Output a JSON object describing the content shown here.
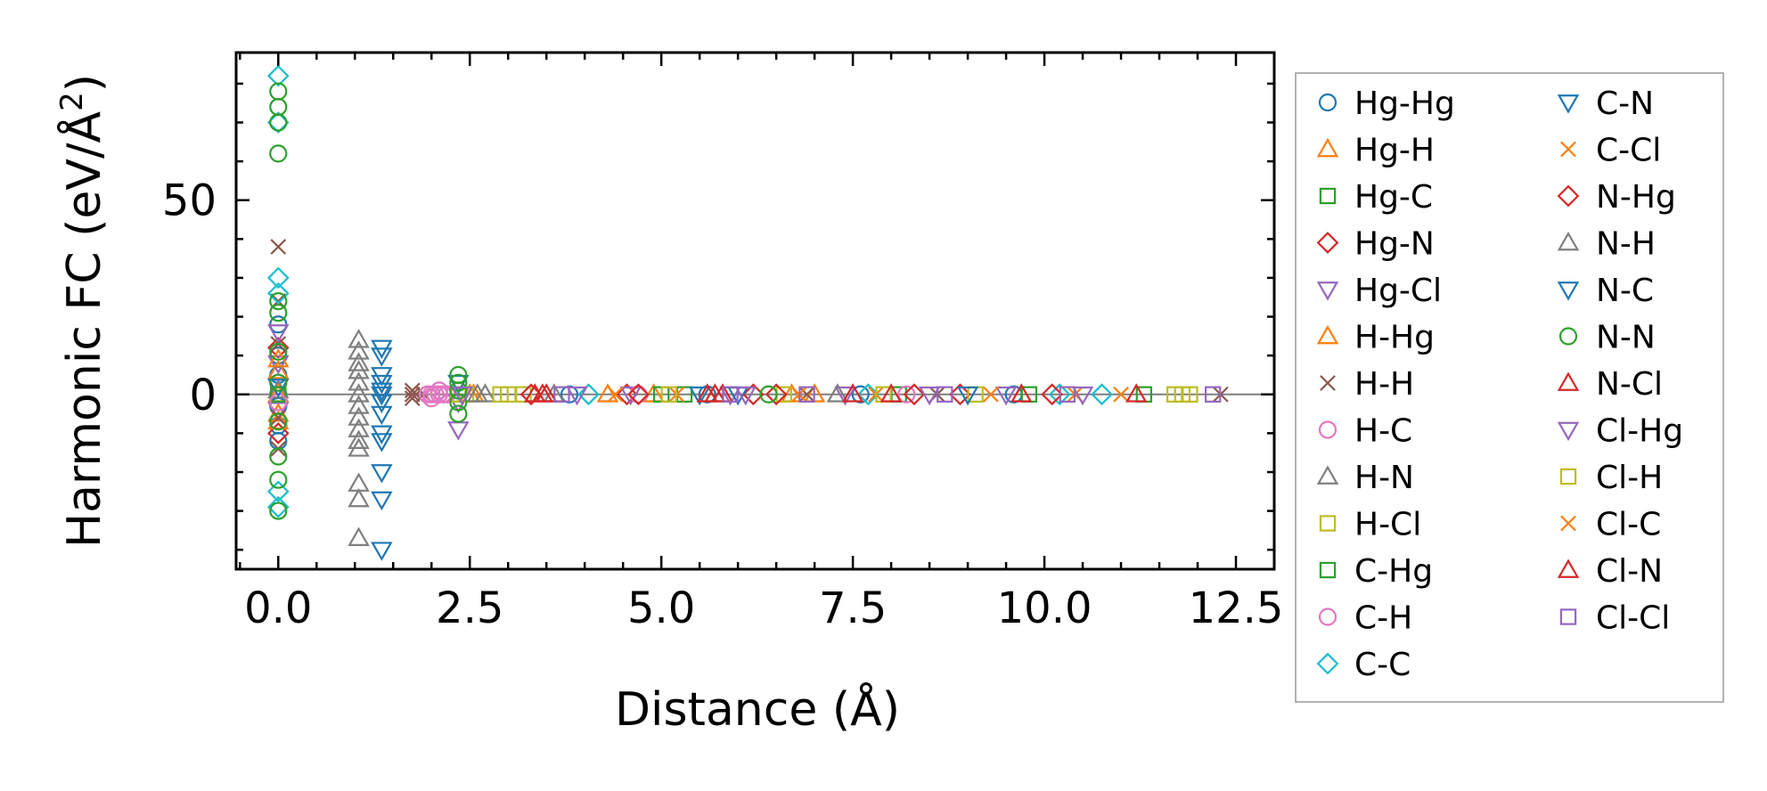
{
  "chart_data": {
    "type": "scatter",
    "title": "",
    "xlabel": "Distance (Å)",
    "ylabel": "Harmonic FC (eV/Å²)",
    "ylabel_base": "Harmonic FC (eV/Å",
    "ylabel_sup": "2",
    "ylabel_tail": ")",
    "xlim": [
      -0.55,
      13.0
    ],
    "ylim": [
      -45,
      88
    ],
    "x_ticks": [
      0.0,
      2.5,
      5.0,
      7.5,
      10.0,
      12.5
    ],
    "x_tick_labels": [
      "0.0",
      "2.5",
      "5.0",
      "7.5",
      "10.0",
      "12.5"
    ],
    "y_ticks": [
      0,
      50
    ],
    "y_tick_labels": [
      "0",
      "50"
    ],
    "zero_line": 0,
    "grid": false,
    "legend_position": "outside-right",
    "series": [
      {
        "name": "Hg-Hg",
        "marker": "circle",
        "color": "#1f77b4",
        "x": [
          0,
          0,
          0,
          0,
          0,
          0,
          0,
          3.8,
          5.6,
          7.6,
          9.6
        ],
        "y": [
          18,
          10,
          5,
          0,
          -3,
          -8,
          -12,
          0,
          0,
          0,
          0
        ]
      },
      {
        "name": "Hg-H",
        "marker": "triangle-up",
        "color": "#ff7f0e",
        "x": [
          0,
          0,
          0,
          2.55,
          4.9,
          6.7
        ],
        "y": [
          6,
          0,
          -5,
          0,
          0,
          0
        ]
      },
      {
        "name": "Hg-C",
        "marker": "square",
        "color": "#2ca02c",
        "x": [
          0,
          2.35,
          5.0,
          8.1
        ],
        "y": [
          0,
          0,
          0,
          0
        ]
      },
      {
        "name": "Hg-N",
        "marker": "diamond",
        "color": "#d62728",
        "x": [
          0,
          0,
          4.55,
          6.2,
          8.9
        ],
        "y": [
          12,
          -10,
          0,
          0,
          0
        ]
      },
      {
        "name": "Hg-Cl",
        "marker": "triangle-down",
        "color": "#9467bd",
        "x": [
          0,
          0,
          0,
          0,
          2.35,
          2.35,
          4.6,
          5.9,
          7.4,
          9.5
        ],
        "y": [
          16,
          8,
          2,
          -4,
          -2,
          -9,
          0,
          0,
          0,
          0
        ]
      },
      {
        "name": "H-Hg",
        "marker": "triangle-up",
        "color": "#ff7f0e",
        "x": [
          0,
          0,
          2.5,
          4.3,
          7.0
        ],
        "y": [
          9,
          -7,
          0,
          0,
          0
        ]
      },
      {
        "name": "H-H",
        "marker": "x",
        "color": "#8c564b",
        "x": [
          0,
          0,
          0,
          0,
          0,
          1.75,
          1.75,
          1.75,
          1.8,
          1.9,
          6.9,
          8.6,
          12.3
        ],
        "y": [
          38,
          24,
          13,
          -6,
          -14,
          1,
          -1,
          0,
          0,
          0,
          0,
          0,
          0
        ]
      },
      {
        "name": "H-C",
        "marker": "circle",
        "color": "#e377c2",
        "x": [
          1.95,
          2.0,
          2.05,
          2.1,
          2.15,
          2.2,
          2.0,
          2.1
        ],
        "y": [
          0,
          0,
          0,
          0,
          0,
          0,
          -1,
          1
        ]
      },
      {
        "name": "H-N",
        "marker": "triangle-up",
        "color": "#7f7f7f",
        "x": [
          0,
          1.05,
          1.05,
          1.05,
          1.05,
          1.05,
          1.05,
          1.05,
          1.05,
          1.05,
          1.05,
          1.05,
          1.05,
          1.05,
          1.05,
          2.7
        ],
        "y": [
          1,
          14,
          11,
          8,
          6,
          3,
          0,
          -3,
          -6,
          -9,
          -12,
          -14,
          -23,
          -27,
          -37,
          0
        ]
      },
      {
        "name": "H-Cl",
        "marker": "square",
        "color": "#bcbd22",
        "x": [
          2.35,
          2.45,
          2.9,
          3.2,
          6.6,
          9.1,
          11.7,
          11.9
        ],
        "y": [
          0,
          0,
          0,
          0,
          0,
          0,
          0,
          0
        ]
      },
      {
        "name": "C-Hg",
        "marker": "square",
        "color": "#2ca02c",
        "x": [
          0,
          5.3,
          9.8,
          11.3
        ],
        "y": [
          0,
          0,
          0,
          0
        ]
      },
      {
        "name": "C-H",
        "marker": "circle",
        "color": "#e377c2",
        "x": [
          0,
          0,
          4.7,
          8.2
        ],
        "y": [
          3,
          -2,
          0,
          0
        ]
      },
      {
        "name": "C-C",
        "marker": "diamond",
        "color": "#17becf",
        "x": [
          0,
          0,
          0,
          0,
          0,
          0,
          4.05,
          7.7,
          10.2,
          10.75
        ],
        "y": [
          82,
          70,
          30,
          26,
          -25,
          -29,
          0,
          0,
          0,
          0
        ]
      },
      {
        "name": "C-N",
        "marker": "triangle-down",
        "color": "#1f77b4",
        "x": [
          1.35,
          1.35,
          1.35,
          1.35,
          1.35,
          1.35,
          1.35,
          1.35,
          1.35,
          1.35,
          1.35,
          1.35,
          1.35,
          6.0
        ],
        "y": [
          12,
          10,
          5,
          3,
          -2,
          -5,
          -10,
          -12,
          -20,
          -27,
          -40,
          0,
          1,
          0
        ]
      },
      {
        "name": "C-Cl",
        "marker": "x",
        "color": "#ff7f0e",
        "x": [
          5.2,
          7.8,
          10.4
        ],
        "y": [
          0,
          0,
          0
        ]
      },
      {
        "name": "N-Hg",
        "marker": "diamond",
        "color": "#d62728",
        "x": [
          3.3,
          4.7,
          6.5,
          8.3,
          10.1
        ],
        "y": [
          0,
          0,
          0,
          0,
          0
        ]
      },
      {
        "name": "N-H",
        "marker": "triangle-up",
        "color": "#7f7f7f",
        "x": [
          2.6,
          3.6,
          7.3
        ],
        "y": [
          0,
          0,
          0
        ]
      },
      {
        "name": "N-C",
        "marker": "triangle-down",
        "color": "#1f77b4",
        "x": [
          0,
          2.35,
          5.5,
          9.0
        ],
        "y": [
          2,
          3,
          0,
          0
        ]
      },
      {
        "name": "N-N",
        "marker": "circle",
        "color": "#2ca02c",
        "x": [
          0,
          0,
          0,
          0,
          0,
          0,
          0,
          0,
          0,
          0,
          0,
          0,
          2.35,
          2.35,
          2.35,
          2.35,
          2.35,
          6.4
        ],
        "y": [
          78,
          74,
          70,
          62,
          24,
          21,
          11,
          3,
          -7,
          -16,
          -22,
          -30,
          5,
          3,
          1,
          -2,
          -5,
          0
        ]
      },
      {
        "name": "N-Cl",
        "marker": "triangle-up",
        "color": "#d62728",
        "x": [
          3.35,
          3.5,
          5.6,
          5.8,
          7.5,
          9.7
        ],
        "y": [
          0,
          0,
          0,
          0,
          0,
          0
        ]
      },
      {
        "name": "Cl-Hg",
        "marker": "triangle-down",
        "color": "#9467bd",
        "x": [
          2.4,
          3.9,
          6.1,
          8.5,
          10.5
        ],
        "y": [
          0,
          0,
          0,
          0,
          0
        ]
      },
      {
        "name": "Cl-H",
        "marker": "square",
        "color": "#bcbd22",
        "x": [
          3.0,
          5.1,
          7.9,
          11.8
        ],
        "y": [
          0,
          0,
          0,
          0
        ]
      },
      {
        "name": "Cl-C",
        "marker": "x",
        "color": "#ff7f0e",
        "x": [
          4.4,
          6.8,
          9.3,
          11.0
        ],
        "y": [
          0,
          0,
          0,
          0
        ]
      },
      {
        "name": "Cl-N",
        "marker": "triangle-up",
        "color": "#d62728",
        "x": [
          3.45,
          5.7,
          8.0,
          11.2
        ],
        "y": [
          0,
          0,
          0,
          0
        ]
      },
      {
        "name": "Cl-Cl",
        "marker": "square",
        "color": "#9467bd",
        "x": [
          3.7,
          5.9,
          6.9,
          8.7,
          10.3,
          12.2
        ],
        "y": [
          0,
          0,
          0,
          0,
          0,
          0
        ]
      }
    ]
  }
}
